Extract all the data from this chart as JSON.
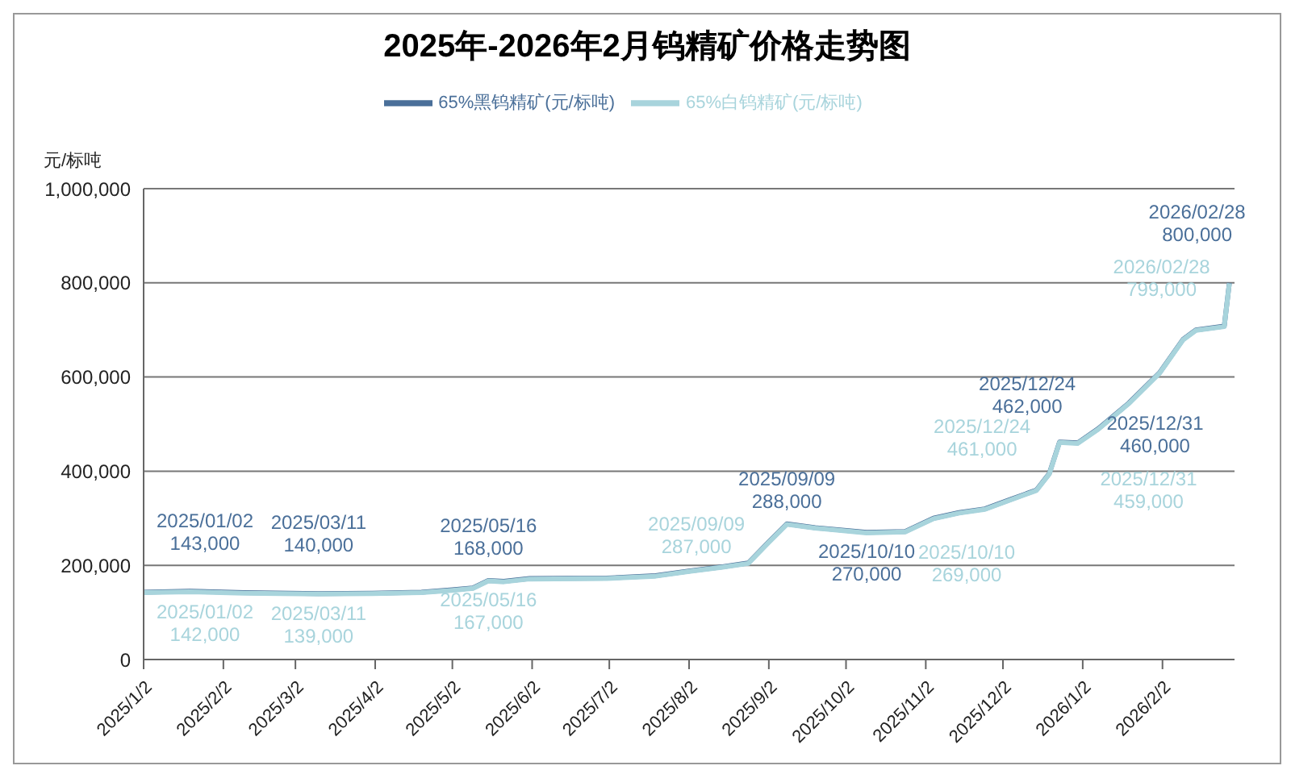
{
  "chart_data": {
    "type": "line",
    "title": "2025年-2026年2月钨精矿价格走势图",
    "ylabel": "元/标吨",
    "xlim": [
      "2025-01-02",
      "2026-03-02"
    ],
    "xticks": [
      {
        "value": "2025-01-02",
        "label": "2025/1/2"
      },
      {
        "value": "2025-02-02",
        "label": "2025/2/2"
      },
      {
        "value": "2025-03-02",
        "label": "2025/3/2"
      },
      {
        "value": "2025-04-02",
        "label": "2025/4/2"
      },
      {
        "value": "2025-05-02",
        "label": "2025/5/2"
      },
      {
        "value": "2025-06-02",
        "label": "2025/6/2"
      },
      {
        "value": "2025-07-02",
        "label": "2025/7/2"
      },
      {
        "value": "2025-08-02",
        "label": "2025/8/2"
      },
      {
        "value": "2025-09-02",
        "label": "2025/9/2"
      },
      {
        "value": "2025-10-02",
        "label": "2025/10/2"
      },
      {
        "value": "2025-11-02",
        "label": "2025/11/2"
      },
      {
        "value": "2025-12-02",
        "label": "2025/12/2"
      },
      {
        "value": "2026-01-02",
        "label": "2026/1/2"
      },
      {
        "value": "2026-02-02",
        "label": "2026/2/2"
      }
    ],
    "ylim": [
      0,
      1000000
    ],
    "yticks": [
      {
        "value": 0,
        "label": "0"
      },
      {
        "value": 200000,
        "label": "200,000"
      },
      {
        "value": 400000,
        "label": "400,000"
      },
      {
        "value": 600000,
        "label": "600,000"
      },
      {
        "value": 800000,
        "label": "800,000"
      },
      {
        "value": 1000000,
        "label": "1,000,000"
      }
    ],
    "grid": "y",
    "legend": "top",
    "marker": "none",
    "line_style": "solid",
    "x": [
      "2025-01-02",
      "2025-01-20",
      "2025-02-10",
      "2025-03-11",
      "2025-04-01",
      "2025-04-20",
      "2025-05-02",
      "2025-05-10",
      "2025-05-16",
      "2025-05-22",
      "2025-06-01",
      "2025-07-01",
      "2025-07-20",
      "2025-08-02",
      "2025-08-15",
      "2025-08-25",
      "2025-09-02",
      "2025-09-09",
      "2025-09-20",
      "2025-10-10",
      "2025-10-25",
      "2025-11-05",
      "2025-11-15",
      "2025-11-25",
      "2025-12-05",
      "2025-12-15",
      "2025-12-20",
      "2025-12-24",
      "2025-12-31",
      "2026-01-08",
      "2026-01-20",
      "2026-02-01",
      "2026-02-10",
      "2026-02-15",
      "2026-02-26",
      "2026-02-28"
    ],
    "series": [
      {
        "name": "65%黑钨精矿(元/标吨)",
        "color": "#4a6f99",
        "values": [
          143000,
          145000,
          142000,
          140000,
          141000,
          143000,
          148000,
          152000,
          168000,
          166000,
          172000,
          173000,
          178000,
          188000,
          197000,
          205000,
          250000,
          288000,
          280000,
          270000,
          272000,
          300000,
          312000,
          320000,
          340000,
          360000,
          395000,
          462000,
          460000,
          490000,
          545000,
          610000,
          680000,
          700000,
          708000,
          800000
        ]
      },
      {
        "name": "65%白钨精矿(元/标吨)",
        "color": "#a8d4dc",
        "values": [
          142000,
          144000,
          141000,
          139000,
          140000,
          142000,
          147000,
          151000,
          167000,
          165000,
          171000,
          172000,
          177000,
          187000,
          196000,
          204000,
          249000,
          287000,
          279000,
          269000,
          271000,
          299000,
          311000,
          319000,
          339000,
          359000,
          394000,
          461000,
          459000,
          489000,
          544000,
          609000,
          679000,
          699000,
          707000,
          799000
        ]
      }
    ],
    "annotations": [
      {
        "text": "2025/01/02\n143,000",
        "x": "2025-01-02",
        "y": 143000
      },
      {
        "text": "2025/03/11\n140,000",
        "x": "2025-03-11",
        "y": 140000
      },
      {
        "text": "2025/05/16\n168,000",
        "x": "2025-05-16",
        "y": 168000
      },
      {
        "text": "2025/09/09\n288,000",
        "x": "2025-09-09",
        "y": 288000
      },
      {
        "text": "2025/10/10\n270,000",
        "x": "2025-10-10",
        "y": 270000
      },
      {
        "text": "2025/12/24\n462,000",
        "x": "2025-12-24",
        "y": 462000
      },
      {
        "text": "2025/12/31\n460,000",
        "x": "2025-12-31",
        "y": 460000
      },
      {
        "text": "2026/02/28\n800,000",
        "x": "2026-02-28",
        "y": 800000
      },
      {
        "text": "2025/01/02\n142,000",
        "x": "2025-01-02",
        "y": 142000
      },
      {
        "text": "2025/03/11\n139,000",
        "x": "2025-03-11",
        "y": 139000
      },
      {
        "text": "2025/05/16\n167,000",
        "x": "2025-05-16",
        "y": 167000
      },
      {
        "text": "2025/09/09\n287,000",
        "x": "2025-09-09",
        "y": 287000
      },
      {
        "text": "2025/10/10\n269,000",
        "x": "2025-10-10",
        "y": 269000
      },
      {
        "text": "2025/12/24\n461,000",
        "x": "2025-12-24",
        "y": 461000
      },
      {
        "text": "2025/12/31\n459,000",
        "x": "2025-12-31",
        "y": 459000
      },
      {
        "text": "2026/02/28\n799,000",
        "x": "2026-02-28",
        "y": 799000
      }
    ]
  }
}
